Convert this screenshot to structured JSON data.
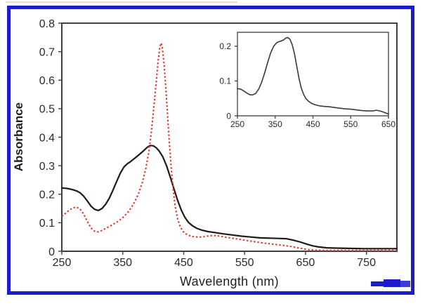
{
  "figure": {
    "border_color": "#1c1ccd",
    "background": "#ffffff",
    "frame_color": "#404040",
    "tick_text_color": "#2a2a2a"
  },
  "chart_data": [
    {
      "type": "line",
      "title": "",
      "xlabel": "Wavelength (nm)",
      "ylabel": "Absorbance",
      "xlim": [
        250,
        800
      ],
      "ylim": [
        0,
        0.8
      ],
      "xticks": [
        250,
        350,
        450,
        550,
        650,
        750
      ],
      "xtick_labels": [
        "250",
        "350",
        "450",
        "550",
        "650",
        "750"
      ],
      "yticks": [
        0,
        0.1,
        0.2,
        0.3,
        0.4,
        0.5,
        0.6,
        0.7,
        0.8
      ],
      "ytick_labels": [
        "0",
        "0.1",
        "0.2",
        "0.3",
        "0.4",
        "0.5",
        "0.6",
        "0.7",
        "0.8"
      ],
      "grid": false,
      "legend": "none",
      "frame_color": "#404040",
      "series": [
        {
          "name": "black-solid-spectrum",
          "color": "#221814",
          "style": "solid",
          "width": 2.2,
          "points": [
            [
              250,
              0.222
            ],
            [
              256,
              0.221
            ],
            [
              262,
              0.219
            ],
            [
              268,
              0.216
            ],
            [
              274,
              0.212
            ],
            [
              280,
              0.205
            ],
            [
              286,
              0.193
            ],
            [
              292,
              0.176
            ],
            [
              298,
              0.158
            ],
            [
              304,
              0.147
            ],
            [
              310,
              0.143
            ],
            [
              316,
              0.15
            ],
            [
              322,
              0.165
            ],
            [
              328,
              0.186
            ],
            [
              334,
              0.215
            ],
            [
              340,
              0.245
            ],
            [
              346,
              0.274
            ],
            [
              352,
              0.296
            ],
            [
              358,
              0.308
            ],
            [
              362,
              0.313
            ],
            [
              366,
              0.32
            ],
            [
              372,
              0.33
            ],
            [
              378,
              0.341
            ],
            [
              384,
              0.352
            ],
            [
              390,
              0.364
            ],
            [
              395,
              0.371
            ],
            [
              400,
              0.37
            ],
            [
              405,
              0.363
            ],
            [
              410,
              0.351
            ],
            [
              416,
              0.33
            ],
            [
              422,
              0.299
            ],
            [
              428,
              0.26
            ],
            [
              434,
              0.219
            ],
            [
              440,
              0.179
            ],
            [
              446,
              0.145
            ],
            [
              452,
              0.119
            ],
            [
              458,
              0.101
            ],
            [
              464,
              0.09
            ],
            [
              472,
              0.08
            ],
            [
              480,
              0.074
            ],
            [
              490,
              0.069
            ],
            [
              500,
              0.066
            ],
            [
              515,
              0.061
            ],
            [
              530,
              0.057
            ],
            [
              545,
              0.053
            ],
            [
              560,
              0.05
            ],
            [
              575,
              0.047
            ],
            [
              590,
              0.046
            ],
            [
              605,
              0.045
            ],
            [
              618,
              0.044
            ],
            [
              630,
              0.039
            ],
            [
              642,
              0.032
            ],
            [
              652,
              0.025
            ],
            [
              662,
              0.019
            ],
            [
              672,
              0.015
            ],
            [
              685,
              0.012
            ],
            [
              700,
              0.011
            ],
            [
              720,
              0.01
            ],
            [
              745,
              0.009
            ],
            [
              770,
              0.009
            ],
            [
              800,
              0.009
            ]
          ]
        },
        {
          "name": "red-dashed-spectrum",
          "color": "#e23737",
          "style": "dashed",
          "dash": "2.4 2.8",
          "width": 2.1,
          "points": [
            [
              250,
              0.122
            ],
            [
              256,
              0.133
            ],
            [
              262,
              0.144
            ],
            [
              268,
              0.152
            ],
            [
              274,
              0.155
            ],
            [
              280,
              0.148
            ],
            [
              286,
              0.13
            ],
            [
              292,
              0.104
            ],
            [
              298,
              0.082
            ],
            [
              304,
              0.07
            ],
            [
              310,
              0.068
            ],
            [
              316,
              0.073
            ],
            [
              322,
              0.08
            ],
            [
              328,
              0.087
            ],
            [
              334,
              0.094
            ],
            [
              340,
              0.102
            ],
            [
              346,
              0.111
            ],
            [
              352,
              0.122
            ],
            [
              358,
              0.136
            ],
            [
              364,
              0.153
            ],
            [
              370,
              0.175
            ],
            [
              376,
              0.203
            ],
            [
              382,
              0.24
            ],
            [
              388,
              0.292
            ],
            [
              393,
              0.35
            ],
            [
              397,
              0.42
            ],
            [
              401,
              0.505
            ],
            [
              405,
              0.595
            ],
            [
              408,
              0.665
            ],
            [
              411,
              0.718
            ],
            [
              413,
              0.73
            ],
            [
              415,
              0.714
            ],
            [
              418,
              0.652
            ],
            [
              421,
              0.562
            ],
            [
              424,
              0.462
            ],
            [
              427,
              0.366
            ],
            [
              430,
              0.282
            ],
            [
              433,
              0.213
            ],
            [
              436,
              0.158
            ],
            [
              440,
              0.114
            ],
            [
              444,
              0.088
            ],
            [
              448,
              0.072
            ],
            [
              452,
              0.063
            ],
            [
              458,
              0.056
            ],
            [
              464,
              0.052
            ],
            [
              472,
              0.05
            ],
            [
              480,
              0.05
            ],
            [
              488,
              0.053
            ],
            [
              496,
              0.055
            ],
            [
              504,
              0.055
            ],
            [
              512,
              0.052
            ],
            [
              520,
              0.049
            ],
            [
              532,
              0.045
            ],
            [
              544,
              0.041
            ],
            [
              556,
              0.037
            ],
            [
              568,
              0.033
            ],
            [
              580,
              0.029
            ],
            [
              592,
              0.026
            ],
            [
              604,
              0.023
            ],
            [
              616,
              0.02
            ],
            [
              628,
              0.016
            ],
            [
              638,
              0.012
            ],
            [
              648,
              0.008
            ],
            [
              658,
              0.005
            ],
            [
              668,
              0.004
            ],
            [
              685,
              0.003
            ],
            [
              710,
              0.003
            ],
            [
              750,
              0.003
            ],
            [
              800,
              0.003
            ]
          ]
        }
      ]
    },
    {
      "type": "line",
      "title": "",
      "xlabel": "",
      "ylabel": "",
      "xlim": [
        250,
        650
      ],
      "ylim": [
        0,
        0.24
      ],
      "xticks": [
        250,
        350,
        450,
        550,
        650
      ],
      "xtick_labels": [
        "250",
        "350",
        "450",
        "550",
        "650"
      ],
      "yticks": [
        0,
        0.1,
        0.2
      ],
      "ytick_labels": [
        "0",
        "0.1",
        "0.2"
      ],
      "grid": false,
      "legend": "none",
      "frame_color": "#4a4a4a",
      "series": [
        {
          "name": "inset-spectrum",
          "color": "#3a3a3a",
          "style": "solid",
          "width": 1.6,
          "points": [
            [
              250,
              0.078
            ],
            [
              258,
              0.077
            ],
            [
              266,
              0.072
            ],
            [
              274,
              0.066
            ],
            [
              282,
              0.061
            ],
            [
              290,
              0.06
            ],
            [
              298,
              0.064
            ],
            [
              306,
              0.076
            ],
            [
              314,
              0.096
            ],
            [
              322,
              0.123
            ],
            [
              330,
              0.153
            ],
            [
              338,
              0.181
            ],
            [
              346,
              0.2
            ],
            [
              354,
              0.21
            ],
            [
              360,
              0.213
            ],
            [
              366,
              0.215
            ],
            [
              372,
              0.218
            ],
            [
              378,
              0.223
            ],
            [
              383,
              0.225
            ],
            [
              389,
              0.22
            ],
            [
              395,
              0.205
            ],
            [
              401,
              0.178
            ],
            [
              407,
              0.143
            ],
            [
              413,
              0.108
            ],
            [
              419,
              0.08
            ],
            [
              425,
              0.062
            ],
            [
              431,
              0.05
            ],
            [
              438,
              0.042
            ],
            [
              446,
              0.036
            ],
            [
              455,
              0.032
            ],
            [
              465,
              0.029
            ],
            [
              478,
              0.027
            ],
            [
              492,
              0.026
            ],
            [
              506,
              0.024
            ],
            [
              520,
              0.022
            ],
            [
              535,
              0.02
            ],
            [
              550,
              0.019
            ],
            [
              565,
              0.017
            ],
            [
              580,
              0.015
            ],
            [
              595,
              0.014
            ],
            [
              608,
              0.014
            ],
            [
              618,
              0.016
            ],
            [
              628,
              0.014
            ],
            [
              638,
              0.01
            ],
            [
              650,
              0.005
            ]
          ]
        }
      ]
    }
  ]
}
